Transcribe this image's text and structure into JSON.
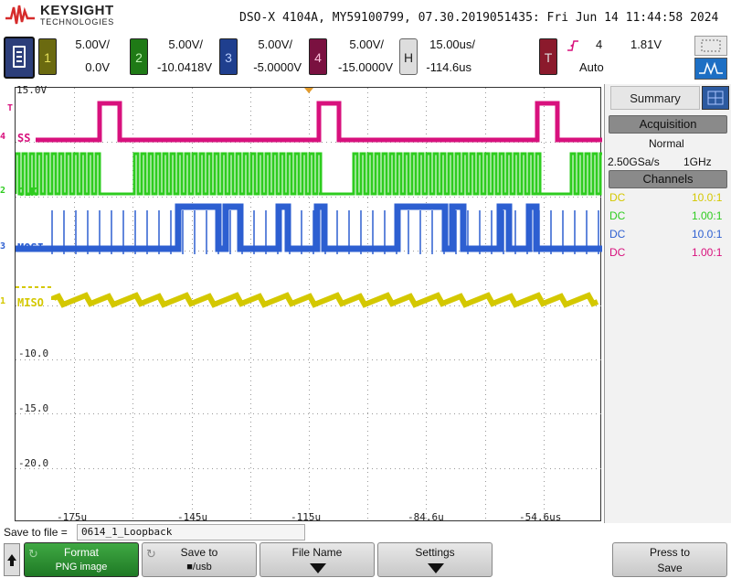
{
  "header": {
    "brand": "KEYSIGHT",
    "brand_sub": "TECHNOLOGIES",
    "title": "DSO-X 4104A, MY59100799, 07.30.2019051435: Fri Jun 14 11:44:58 2024"
  },
  "channels": [
    {
      "num": "1",
      "scale": "5.00V/",
      "offset": "0.0V",
      "color": "#d4c800"
    },
    {
      "num": "2",
      "scale": "5.00V/",
      "offset": "-10.0418V",
      "color": "#2ecc1f"
    },
    {
      "num": "3",
      "scale": "5.00V/",
      "offset": "-5.0000V",
      "color": "#2d5fd1"
    },
    {
      "num": "4",
      "scale": "5.00V/",
      "offset": "-15.0000V",
      "color": "#d8117d"
    }
  ],
  "horizontal": {
    "tab": "H",
    "scale": "15.00us/",
    "delay": "-114.6us"
  },
  "trigger": {
    "tab": "T",
    "edge_icon": "rising-edge-icon",
    "source": "4",
    "level": "1.81V",
    "mode": "Auto"
  },
  "run_control": {
    "icon": "auto-scale-icon"
  },
  "grid": {
    "top_label": "15.0V",
    "volt_labels": [
      "-10.0",
      "-15.0",
      "-20.0"
    ],
    "time_labels": [
      "-175u",
      "-145u",
      "-115u",
      "-84.6u",
      "-54.6us"
    ],
    "trigger_marker": "T",
    "traces": [
      {
        "name": "SS",
        "marker": "4",
        "color": "#d8117d"
      },
      {
        "name": "CLK",
        "marker": "2",
        "color": "#2ecc1f"
      },
      {
        "name": "MOSI",
        "marker": "3",
        "color": "#2d5fd1"
      },
      {
        "name": "MISO",
        "marker": "1",
        "color": "#d4c800"
      }
    ]
  },
  "panel": {
    "tab": "Summary",
    "acquisition_head": "Acquisition",
    "mode": "Normal",
    "sample_rate": "2.50GSa/s",
    "bandwidth": "1GHz",
    "channels_head": "Channels",
    "rows": [
      {
        "coupling": "DC",
        "probe": "10.0:1",
        "color": "#d4c800"
      },
      {
        "coupling": "DC",
        "probe": "1.00:1",
        "color": "#2ecc1f"
      },
      {
        "coupling": "DC",
        "probe": "10.0:1",
        "color": "#2d5fd1"
      },
      {
        "coupling": "DC",
        "probe": "1.00:1",
        "color": "#d8117d"
      }
    ]
  },
  "save": {
    "label": "Save to file =",
    "filename": "0614_1_Loopback"
  },
  "softkeys": [
    {
      "line1": "Format",
      "line2": "PNG image"
    },
    {
      "line1": "Save to",
      "line2": "■/usb"
    },
    {
      "line1": "File Name",
      "line2": ""
    },
    {
      "line1": "Settings",
      "line2": ""
    },
    {
      "line1": "Press to",
      "line2": "Save"
    }
  ]
}
